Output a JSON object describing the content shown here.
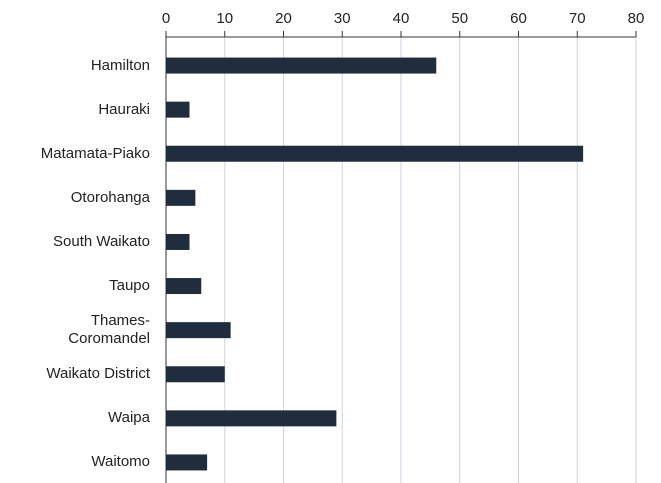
{
  "chart_data": {
    "type": "barh",
    "categories": [
      "Hamilton",
      "Hauraki",
      "Matamata-Piako",
      "Otorohanga",
      "South Waikato",
      "Taupo",
      "Thames-\nCoromandel",
      "Waikato District",
      "Waipa",
      "Waitomo"
    ],
    "values": [
      46,
      4,
      71,
      5,
      4,
      6,
      11,
      10,
      29,
      7
    ],
    "color": "#1f2d3d",
    "xlim": [
      0,
      80
    ],
    "xticks": [
      0,
      10,
      20,
      30,
      40,
      50,
      60,
      70,
      80
    ],
    "grid": true
  }
}
